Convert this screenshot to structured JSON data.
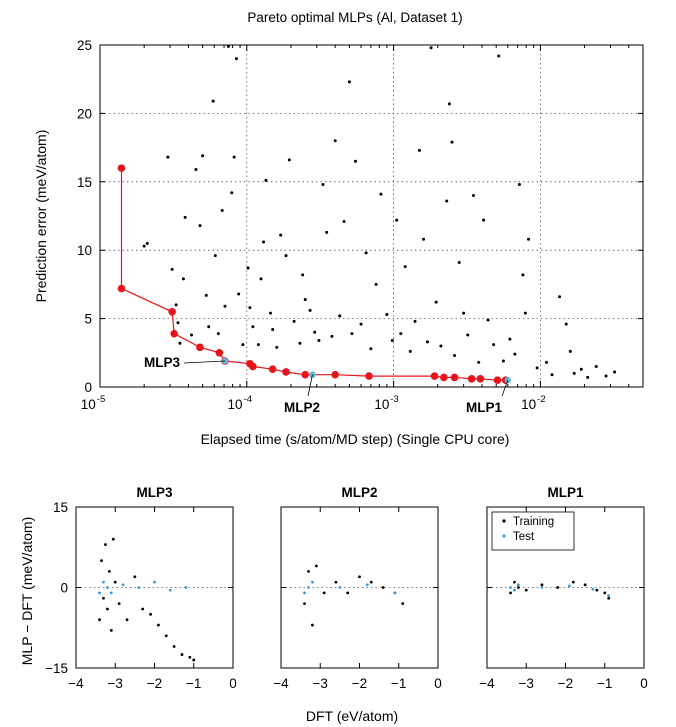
{
  "colors": {
    "pareto": "#e8141c",
    "selected": "#5fb4d8",
    "training": "#000000",
    "test": "#3a9ad9",
    "grid": "#555555"
  },
  "chart_data": [
    {
      "type": "scatter",
      "title": "Pareto optimal MLPs (Al, Dataset 1)",
      "xlabel": "Elapsed time (s/atom/MD step) (Single CPU core)",
      "ylabel": "Prediction error (meV/atom)",
      "xscale": "log",
      "xlim": [
        1e-05,
        0.05
      ],
      "ylim": [
        0,
        25
      ],
      "xticks": [
        {
          "base": "10",
          "exp": "-5"
        },
        {
          "base": "10",
          "exp": "-4"
        },
        {
          "base": "10",
          "exp": "-3"
        },
        {
          "base": "10",
          "exp": "-2"
        }
      ],
      "yticks": [
        "0",
        "5",
        "10",
        "15",
        "20",
        "25"
      ],
      "grid": true,
      "series": [
        {
          "name": "",
          "color": "#000000",
          "points": [
            [
              2e-05,
              10.3
            ],
            [
              2.1e-05,
              10.5
            ],
            [
              2.9e-05,
              16.8
            ],
            [
              3.1e-05,
              8.6
            ],
            [
              3.3e-05,
              6.0
            ],
            [
              3.4e-05,
              4.7
            ],
            [
              3.5e-05,
              3.2
            ],
            [
              3.7e-05,
              7.9
            ],
            [
              3.8e-05,
              12.4
            ],
            [
              4.2e-05,
              3.8
            ],
            [
              4.5e-05,
              15.9
            ],
            [
              4.8e-05,
              11.8
            ],
            [
              5e-05,
              16.9
            ],
            [
              5.3e-05,
              6.7
            ],
            [
              5.5e-05,
              4.4
            ],
            [
              5.9e-05,
              20.9
            ],
            [
              6.1e-05,
              9.6
            ],
            [
              6.4e-05,
              3.9
            ],
            [
              6.8e-05,
              12.9
            ],
            [
              7.1e-05,
              5.9
            ],
            [
              7.5e-05,
              24.9
            ],
            [
              7.9e-05,
              14.2
            ],
            [
              8.2e-05,
              16.8
            ],
            [
              8.8e-05,
              6.8
            ],
            [
              8.5e-05,
              24.0
            ],
            [
              9.4e-05,
              3.1
            ],
            [
              0.000102,
              8.7
            ],
            [
              0.000105,
              5.8
            ],
            [
              0.00011,
              4.4
            ],
            [
              0.00012,
              3.1
            ],
            [
              0.000125,
              7.9
            ],
            [
              0.00013,
              10.6
            ],
            [
              0.000135,
              15.1
            ],
            [
              0.000145,
              5.4
            ],
            [
              0.00015,
              4.2
            ],
            [
              0.00016,
              2.9
            ],
            [
              0.00017,
              11.1
            ],
            [
              0.000185,
              9.6
            ],
            [
              0.000195,
              16.6
            ],
            [
              0.00021,
              4.8
            ],
            [
              0.00023,
              3.2
            ],
            [
              0.00024,
              8.2
            ],
            [
              0.00025,
              6.4
            ],
            [
              0.00027,
              5.6
            ],
            [
              0.00029,
              4.0
            ],
            [
              0.00031,
              3.4
            ],
            [
              0.00033,
              14.8
            ],
            [
              0.00035,
              11.3
            ],
            [
              0.00038,
              3.7
            ],
            [
              0.0004,
              18.0
            ],
            [
              0.00043,
              5.2
            ],
            [
              0.00046,
              12.1
            ],
            [
              0.0005,
              22.3
            ],
            [
              0.00052,
              3.9
            ],
            [
              0.00055,
              16.5
            ],
            [
              0.0006,
              4.6
            ],
            [
              0.00065,
              9.8
            ],
            [
              0.0007,
              2.8
            ],
            [
              0.00076,
              7.5
            ],
            [
              0.00082,
              14.1
            ],
            [
              0.0009,
              5.3
            ],
            [
              0.00098,
              3.4
            ],
            [
              0.00105,
              12.2
            ],
            [
              0.00112,
              3.9
            ],
            [
              0.0012,
              8.8
            ],
            [
              0.0013,
              2.6
            ],
            [
              0.0014,
              4.8
            ],
            [
              0.0015,
              17.3
            ],
            [
              0.0016,
              10.8
            ],
            [
              0.0017,
              3.3
            ],
            [
              0.0018,
              24.8
            ],
            [
              0.00195,
              6.2
            ],
            [
              0.0021,
              3.0
            ],
            [
              0.0023,
              13.6
            ],
            [
              0.0024,
              20.7
            ],
            [
              0.0025,
              17.9
            ],
            [
              0.0026,
              2.3
            ],
            [
              0.0028,
              9.1
            ],
            [
              0.003,
              5.4
            ],
            [
              0.0032,
              3.8
            ],
            [
              0.0035,
              14.0
            ],
            [
              0.0038,
              1.8
            ],
            [
              0.0041,
              12.2
            ],
            [
              0.0044,
              4.9
            ],
            [
              0.0048,
              3.1
            ],
            [
              0.0052,
              24.2
            ],
            [
              0.0056,
              1.9
            ],
            [
              0.0062,
              3.5
            ],
            [
              0.0067,
              2.4
            ],
            [
              0.0072,
              14.8
            ],
            [
              0.0076,
              8.2
            ],
            [
              0.0079,
              5.4
            ],
            [
              0.0083,
              10.8
            ],
            [
              0.0095,
              1.4
            ],
            [
              0.011,
              1.8
            ],
            [
              0.012,
              0.9
            ],
            [
              0.0135,
              6.6
            ],
            [
              0.015,
              4.6
            ],
            [
              0.016,
              2.6
            ],
            [
              0.017,
              1.0
            ],
            [
              0.019,
              1.3
            ],
            [
              0.021,
              0.7
            ],
            [
              0.024,
              1.5
            ],
            [
              0.028,
              0.8
            ],
            [
              0.032,
              1.1
            ]
          ]
        },
        {
          "name": "",
          "color": "#e8141c",
          "points": [
            [
              1.4e-05,
              16.0
            ],
            [
              1.4e-05,
              7.2
            ],
            [
              3.1e-05,
              5.5
            ],
            [
              3.2e-05,
              3.9
            ],
            [
              4.8e-05,
              2.9
            ],
            [
              6.5e-05,
              2.5
            ],
            [
              7.1e-05,
              1.9
            ],
            [
              0.000105,
              1.7
            ],
            [
              0.00011,
              1.5
            ],
            [
              0.00015,
              1.3
            ],
            [
              0.000185,
              1.1
            ],
            [
              0.00025,
              0.9
            ],
            [
              0.0004,
              0.9
            ],
            [
              0.00068,
              0.8
            ],
            [
              0.0019,
              0.8
            ],
            [
              0.0022,
              0.7
            ],
            [
              0.0026,
              0.7
            ],
            [
              0.0034,
              0.6
            ],
            [
              0.0039,
              0.6
            ],
            [
              0.0051,
              0.5
            ],
            [
              0.0058,
              0.5
            ]
          ]
        },
        {
          "name": "",
          "color": "#5fb4d8",
          "points": [
            [
              7.1e-05,
              1.9
            ],
            [
              0.00028,
              0.9
            ],
            [
              0.006,
              0.5
            ]
          ]
        }
      ],
      "annotations": [
        "MLP3",
        "MLP2",
        "MLP1"
      ]
    },
    {
      "type": "scatter",
      "title": "MLP3",
      "xlim": [
        -4,
        0
      ],
      "ylim": [
        -15,
        15
      ],
      "xticks": [
        "−4",
        "−3",
        "−2",
        "−1",
        "0"
      ],
      "yticks": [
        "15",
        "0",
        "−15"
      ],
      "series": [
        {
          "name": "",
          "color": "#000000",
          "x": [
            -3.4,
            -3.35,
            -3.3,
            -3.25,
            -3.2,
            -3.15,
            -3.1,
            -3.05,
            -3.0,
            -2.9,
            -2.7,
            -2.5,
            -2.3,
            -2.1,
            -1.9,
            -1.7,
            -1.5,
            -1.3,
            -1.1,
            -1.0
          ],
          "y": [
            -6,
            5,
            -2,
            8,
            -4,
            3,
            -8,
            9,
            1,
            -3,
            -6,
            2,
            -4,
            -5,
            -7,
            -9,
            -11,
            -12.5,
            -13,
            -13.5
          ]
        },
        {
          "name": "",
          "color": "#3a9ad9",
          "x": [
            -3.4,
            -3.3,
            -3.2,
            -3.1,
            -2.8,
            -2.4,
            -2.0,
            -1.6,
            -1.2
          ],
          "y": [
            -1,
            1,
            0,
            -1,
            0.5,
            0,
            1,
            -0.5,
            0
          ]
        }
      ]
    },
    {
      "type": "scatter",
      "title": "MLP2",
      "xlim": [
        -4,
        0
      ],
      "ylim": [
        -15,
        15
      ],
      "xticks": [
        "−4",
        "−3",
        "−2",
        "−1",
        "0"
      ],
      "series": [
        {
          "name": "",
          "color": "#000000",
          "x": [
            -3.4,
            -3.3,
            -3.2,
            -3.1,
            -2.9,
            -2.6,
            -2.3,
            -2.0,
            -1.7,
            -1.4,
            -1.1,
            -0.9
          ],
          "y": [
            -3,
            3,
            -7,
            4,
            -1,
            1,
            -1,
            2,
            1,
            0,
            -1,
            -3
          ]
        },
        {
          "name": "",
          "color": "#3a9ad9",
          "x": [
            -3.4,
            -3.3,
            -3.2,
            -2.5,
            -1.8,
            -1.1
          ],
          "y": [
            -1,
            0,
            1,
            0,
            0.5,
            -1
          ]
        }
      ]
    },
    {
      "type": "scatter",
      "title": "MLP1",
      "xlim": [
        -4,
        0
      ],
      "ylim": [
        -15,
        15
      ],
      "xticks": [
        "−4",
        "−3",
        "−2",
        "−1",
        "0"
      ],
      "series": [
        {
          "name": "Training",
          "color": "#000000",
          "x": [
            -3.4,
            -3.3,
            -3.2,
            -3.0,
            -2.6,
            -2.2,
            -1.8,
            -1.5,
            -1.2,
            -1.0,
            -0.9
          ],
          "y": [
            -1,
            1,
            0,
            -0.5,
            0.5,
            0,
            1,
            0.5,
            -0.5,
            -1,
            -2
          ]
        },
        {
          "name": "Test",
          "color": "#3a9ad9",
          "x": [
            -3.4,
            -3.3,
            -3.2,
            -2.6,
            -1.9,
            -1.3,
            -0.9
          ],
          "y": [
            0,
            -0.5,
            0.5,
            0,
            0.3,
            -0.3,
            -1.5
          ]
        }
      ]
    }
  ],
  "shared": {
    "bottom_ylabel": "MLP − DFT (meV/atom)",
    "bottom_xlabel": "DFT (eV/atom)"
  }
}
